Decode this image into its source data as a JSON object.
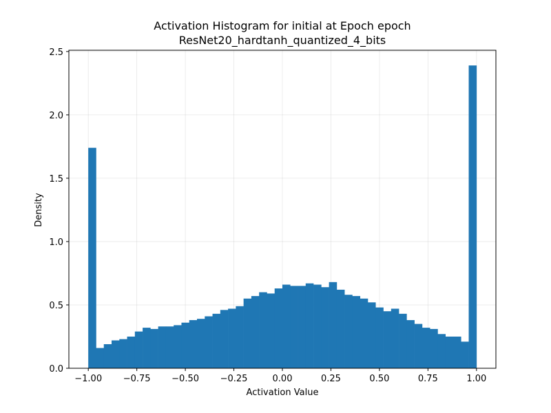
{
  "chart_data": {
    "type": "bar",
    "title_line1": "Activation Histogram for initial at Epoch epoch",
    "title_line2": "ResNet20_hardtanh_quantized_4_bits",
    "xlabel": "Activation Value",
    "ylabel": "Density",
    "xlim": [
      -1.1,
      1.1
    ],
    "ylim": [
      0,
      2.51
    ],
    "grid": true,
    "bar_color": "#1f77b4",
    "x_ticks": [
      -1.0,
      -0.75,
      -0.5,
      -0.25,
      0.0,
      0.25,
      0.5,
      0.75,
      1.0
    ],
    "x_tick_labels": [
      "−1.00",
      "−0.75",
      "−0.50",
      "−0.25",
      "0.00",
      "0.25",
      "0.50",
      "0.75",
      "1.00"
    ],
    "y_ticks": [
      0.0,
      0.5,
      1.0,
      1.5,
      2.0,
      2.5
    ],
    "y_tick_labels": [
      "0.0",
      "0.5",
      "1.0",
      "1.5",
      "2.0",
      "2.5"
    ],
    "bins_start": -1.0,
    "bin_width": 0.04,
    "values": [
      1.74,
      0.16,
      0.19,
      0.22,
      0.23,
      0.25,
      0.29,
      0.32,
      0.31,
      0.33,
      0.33,
      0.34,
      0.36,
      0.38,
      0.39,
      0.41,
      0.43,
      0.46,
      0.47,
      0.49,
      0.55,
      0.57,
      0.6,
      0.59,
      0.63,
      0.66,
      0.65,
      0.65,
      0.67,
      0.66,
      0.64,
      0.68,
      0.62,
      0.58,
      0.57,
      0.55,
      0.52,
      0.48,
      0.45,
      0.47,
      0.43,
      0.38,
      0.35,
      0.32,
      0.31,
      0.27,
      0.25,
      0.25,
      0.21,
      2.39
    ]
  }
}
